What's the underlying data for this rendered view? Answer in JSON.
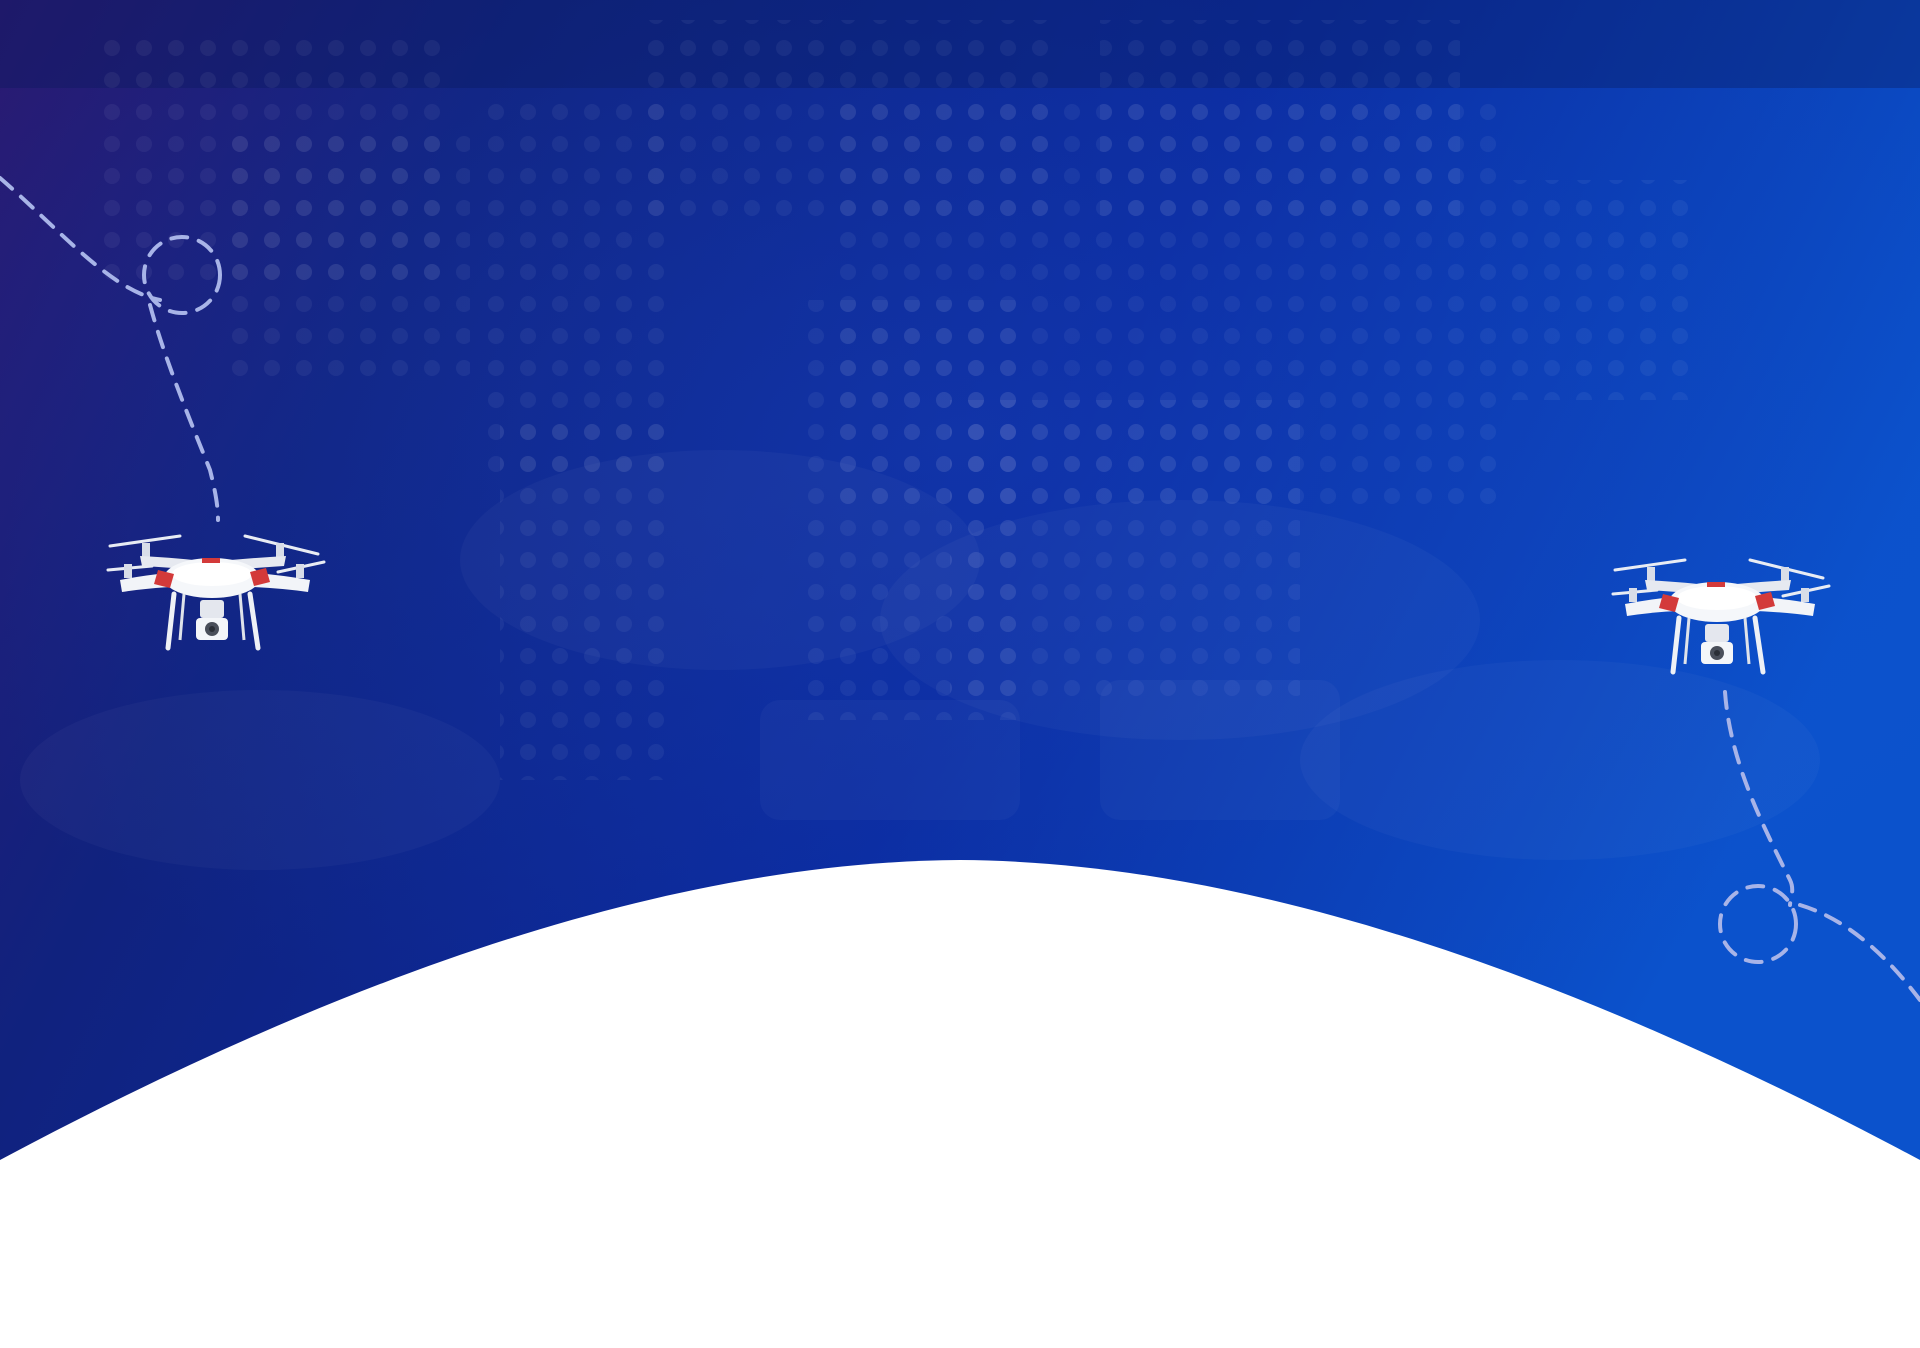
{
  "hero": {
    "background": {
      "gradient_colors": [
        "#2a1a72",
        "#0e2a8c",
        "#0a2fb0",
        "#0b52cc"
      ],
      "curve_color": "#ffffff"
    },
    "decorations": {
      "flight_path_color": "#a8b4e8",
      "drone_icon": "quadcopter-drone-icon",
      "drone_count": 2
    }
  }
}
